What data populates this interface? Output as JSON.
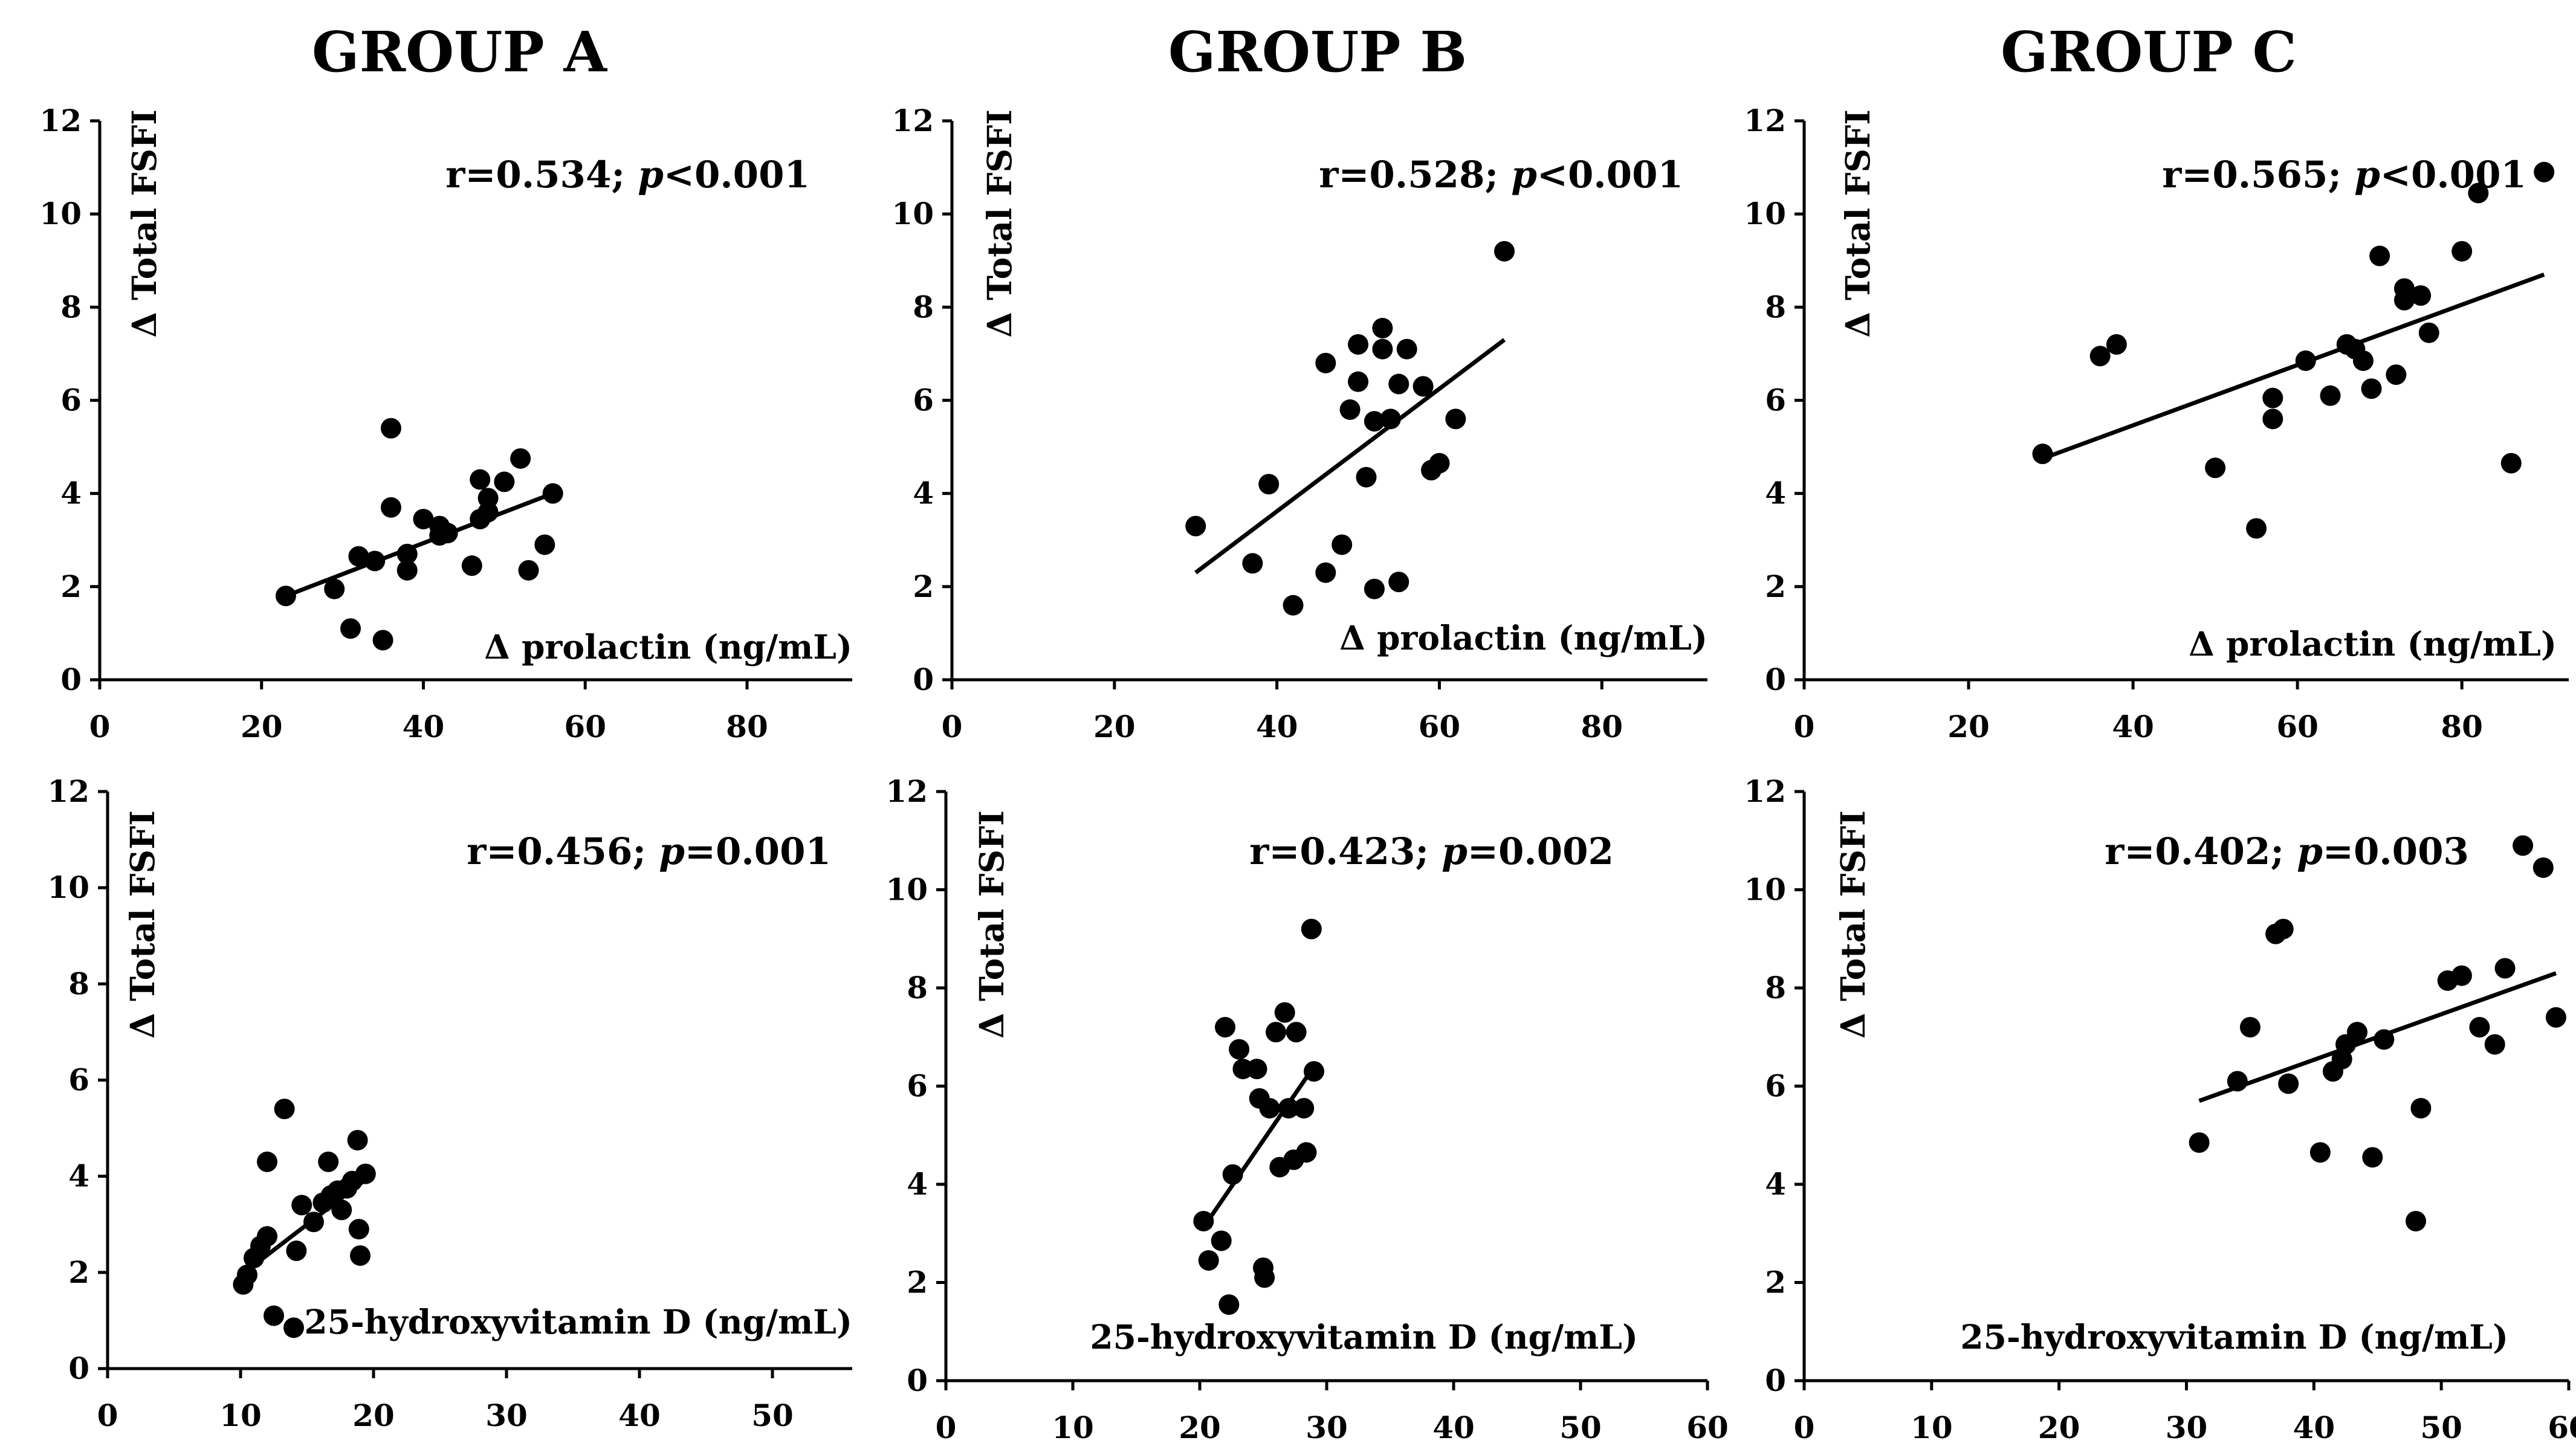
{
  "groups": [
    {
      "title": "GROUP A"
    },
    {
      "title": "GROUP B"
    },
    {
      "title": "GROUP C"
    }
  ],
  "chart_data": [
    {
      "type": "scatter",
      "group": "GROUP A",
      "title": "GROUP A",
      "xlabel": "Δ prolactin (ng/mL)",
      "ylabel": "Δ Total FSFI",
      "xlim": [
        0,
        93
      ],
      "ylim": [
        0,
        12
      ],
      "xticks": [
        0,
        20,
        40,
        60,
        80
      ],
      "yticks": [
        0,
        2,
        4,
        6,
        8,
        10,
        12
      ],
      "stat": {
        "r": "r=0.534; ",
        "p_label": "p",
        "p_value": "<0.001"
      },
      "fit": [
        [
          23,
          1.8
        ],
        [
          56,
          4.0
        ]
      ],
      "points": [
        [
          23,
          1.8
        ],
        [
          29,
          1.95
        ],
        [
          31,
          1.1
        ],
        [
          32,
          2.65
        ],
        [
          34,
          2.55
        ],
        [
          35,
          0.85
        ],
        [
          36,
          5.4
        ],
        [
          36,
          3.7
        ],
        [
          38,
          2.35
        ],
        [
          38,
          2.7
        ],
        [
          40,
          3.45
        ],
        [
          42,
          3.3
        ],
        [
          42,
          3.1
        ],
        [
          43,
          3.15
        ],
        [
          46,
          2.45
        ],
        [
          47,
          4.3
        ],
        [
          47,
          3.45
        ],
        [
          48,
          3.9
        ],
        [
          48,
          3.6
        ],
        [
          50,
          4.25
        ],
        [
          52,
          4.75
        ],
        [
          53,
          2.35
        ],
        [
          55,
          2.9
        ],
        [
          56,
          4.0
        ]
      ]
    },
    {
      "type": "scatter",
      "group": "GROUP B",
      "title": "GROUP B",
      "xlabel": "Δ prolactin (ng/mL)",
      "ylabel": "Δ Total FSFI",
      "xlim": [
        0,
        93
      ],
      "ylim": [
        0,
        12
      ],
      "xticks": [
        0,
        20,
        40,
        60,
        80
      ],
      "yticks": [
        0,
        2,
        4,
        6,
        8,
        10,
        12
      ],
      "stat": {
        "r": "r=0.528; ",
        "p_label": "p",
        "p_value": "<0.001"
      },
      "fit": [
        [
          30,
          2.3
        ],
        [
          68,
          7.3
        ]
      ],
      "points": [
        [
          30,
          3.3
        ],
        [
          37,
          2.5
        ],
        [
          39,
          4.2
        ],
        [
          42,
          1.6
        ],
        [
          46,
          6.8
        ],
        [
          46,
          2.3
        ],
        [
          48,
          2.9
        ],
        [
          49,
          5.8
        ],
        [
          50,
          7.2
        ],
        [
          50,
          6.4
        ],
        [
          51,
          4.35
        ],
        [
          52,
          5.55
        ],
        [
          52,
          1.95
        ],
        [
          53,
          7.55
        ],
        [
          53,
          7.1
        ],
        [
          54,
          5.6
        ],
        [
          55,
          6.35
        ],
        [
          55,
          2.1
        ],
        [
          56,
          7.1
        ],
        [
          58,
          6.3
        ],
        [
          59,
          4.5
        ],
        [
          60,
          4.65
        ],
        [
          62,
          5.6
        ],
        [
          68,
          9.2
        ]
      ]
    },
    {
      "type": "scatter",
      "group": "GROUP C",
      "title": "GROUP C",
      "xlabel": "Δ prolactin (ng/mL)",
      "ylabel": "Δ Total FSFI",
      "xlim": [
        0,
        93
      ],
      "ylim": [
        0,
        12
      ],
      "xticks": [
        0,
        20,
        40,
        60,
        80
      ],
      "yticks": [
        0,
        2,
        4,
        6,
        8,
        10,
        12
      ],
      "stat": {
        "r": "r=0.565; ",
        "p_label": "p",
        "p_value": "<0.001"
      },
      "fit": [
        [
          29,
          4.75
        ],
        [
          90,
          8.7
        ]
      ],
      "points": [
        [
          29,
          4.85
        ],
        [
          36,
          6.95
        ],
        [
          38,
          7.2
        ],
        [
          50,
          4.55
        ],
        [
          55,
          3.25
        ],
        [
          57,
          6.05
        ],
        [
          57,
          5.6
        ],
        [
          61,
          6.85
        ],
        [
          64,
          6.1
        ],
        [
          66,
          7.2
        ],
        [
          67,
          7.1
        ],
        [
          68,
          6.85
        ],
        [
          69,
          6.25
        ],
        [
          70,
          9.1
        ],
        [
          72,
          6.55
        ],
        [
          73,
          8.4
        ],
        [
          73,
          8.15
        ],
        [
          75,
          8.25
        ],
        [
          76,
          7.45
        ],
        [
          80,
          9.2
        ],
        [
          82,
          10.45
        ],
        [
          86,
          4.65
        ],
        [
          90,
          10.9
        ]
      ]
    },
    {
      "type": "scatter",
      "group": "GROUP A",
      "xlabel": "25-hydroxyvitamin D (ng/mL)",
      "ylabel": "Δ  Total FSFI",
      "xlim": [
        0,
        56
      ],
      "ylim": [
        0,
        12
      ],
      "xticks": [
        0,
        10,
        20,
        30,
        40,
        50
      ],
      "yticks": [
        0,
        2,
        4,
        6,
        8,
        10,
        12
      ],
      "stat": {
        "r": "r=0.456; ",
        "p_label": "p",
        "p_value": "=0.001"
      },
      "fit": [
        [
          10.3,
          2.0
        ],
        [
          19.5,
          3.95
        ]
      ],
      "points": [
        [
          10.2,
          1.75
        ],
        [
          10.5,
          1.95
        ],
        [
          11,
          2.3
        ],
        [
          11.5,
          2.55
        ],
        [
          12,
          2.75
        ],
        [
          12,
          4.3
        ],
        [
          12.5,
          1.1
        ],
        [
          13.3,
          5.4
        ],
        [
          14,
          0.85
        ],
        [
          14.2,
          2.45
        ],
        [
          14.6,
          3.4
        ],
        [
          15.5,
          3.05
        ],
        [
          16.2,
          3.45
        ],
        [
          16.6,
          4.3
        ],
        [
          16.8,
          3.6
        ],
        [
          17.3,
          3.7
        ],
        [
          17.6,
          3.3
        ],
        [
          18,
          3.75
        ],
        [
          18.4,
          3.9
        ],
        [
          18.8,
          4.75
        ],
        [
          18.9,
          2.9
        ],
        [
          19,
          2.35
        ],
        [
          19.4,
          4.05
        ]
      ]
    },
    {
      "type": "scatter",
      "group": "GROUP B",
      "xlabel": "25-hydroxyvitamin D (ng/mL)",
      "ylabel": "Δ  Total FSFI",
      "xlim": [
        0,
        60
      ],
      "ylim": [
        0,
        12
      ],
      "xticks": [
        0,
        10,
        20,
        30,
        40,
        50,
        60
      ],
      "yticks": [
        0,
        2,
        4,
        6,
        8,
        10,
        12
      ],
      "stat": {
        "r": "r=0.423; ",
        "p_label": "p",
        "p_value": "=0.002"
      },
      "fit": [
        [
          20.5,
          3.2
        ],
        [
          29,
          6.4
        ]
      ],
      "points": [
        [
          20.3,
          3.25
        ],
        [
          20.7,
          2.45
        ],
        [
          21.7,
          2.85
        ],
        [
          22,
          7.2
        ],
        [
          22.3,
          1.55
        ],
        [
          22.6,
          4.2
        ],
        [
          23.1,
          6.75
        ],
        [
          23.4,
          6.35
        ],
        [
          24.5,
          6.35
        ],
        [
          24.7,
          5.75
        ],
        [
          25,
          2.3
        ],
        [
          25.1,
          2.1
        ],
        [
          25.5,
          5.55
        ],
        [
          26,
          7.1
        ],
        [
          26.3,
          4.35
        ],
        [
          26.7,
          7.5
        ],
        [
          27,
          5.55
        ],
        [
          27.4,
          4.5
        ],
        [
          27.6,
          7.1
        ],
        [
          28.2,
          5.55
        ],
        [
          28.4,
          4.65
        ],
        [
          28.8,
          9.2
        ],
        [
          29,
          6.3
        ]
      ]
    },
    {
      "type": "scatter",
      "group": "GROUP C",
      "xlabel": "25-hydroxyvitamin D (ng/mL)",
      "ylabel": "Δ  Total FSFI",
      "xlim": [
        0,
        60
      ],
      "ylim": [
        0,
        12
      ],
      "xticks": [
        0,
        10,
        20,
        30,
        40,
        50,
        60
      ],
      "yticks": [
        0,
        2,
        4,
        6,
        8,
        10,
        12
      ],
      "stat": {
        "r": "r=0.402; ",
        "p_label": "p",
        "p_value": "=0.003"
      },
      "fit": [
        [
          31,
          5.7
        ],
        [
          59,
          8.3
        ]
      ],
      "points": [
        [
          31,
          4.85
        ],
        [
          34,
          6.1
        ],
        [
          35,
          7.2
        ],
        [
          37,
          9.1
        ],
        [
          37.6,
          9.2
        ],
        [
          38,
          6.05
        ],
        [
          40.5,
          4.65
        ],
        [
          41.5,
          6.3
        ],
        [
          42.2,
          6.55
        ],
        [
          42.5,
          6.85
        ],
        [
          43.4,
          7.1
        ],
        [
          44.6,
          4.55
        ],
        [
          45.5,
          6.95
        ],
        [
          48,
          3.25
        ],
        [
          48.4,
          5.55
        ],
        [
          50.5,
          8.15
        ],
        [
          51.6,
          8.25
        ],
        [
          53,
          7.2
        ],
        [
          54.2,
          6.85
        ],
        [
          55,
          8.4
        ],
        [
          56.4,
          10.9
        ],
        [
          58,
          10.45
        ],
        [
          59,
          7.4
        ]
      ]
    }
  ]
}
